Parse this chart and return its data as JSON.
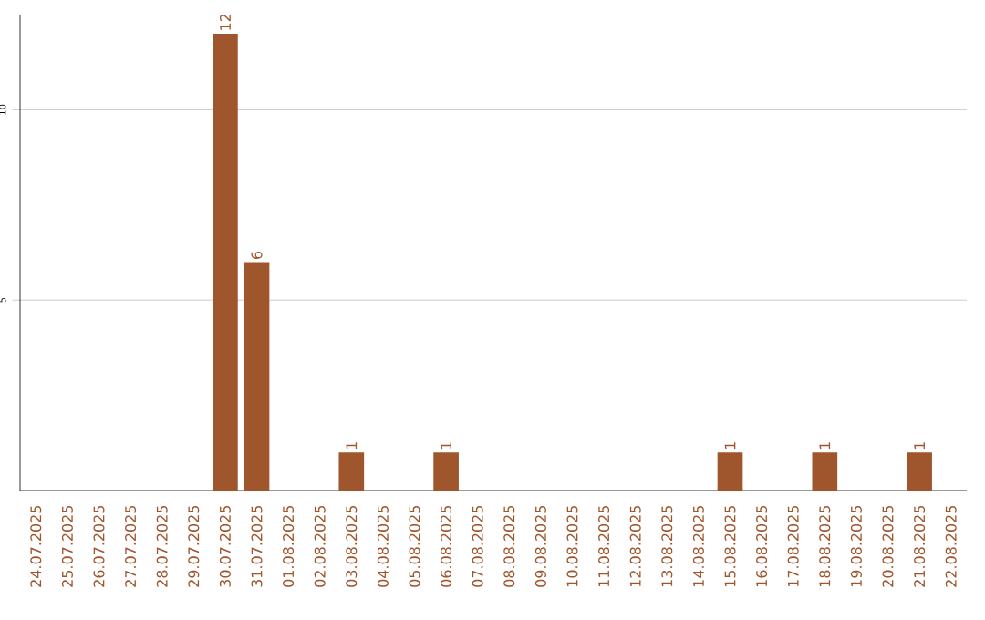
{
  "chart_data": {
    "type": "bar",
    "categories": [
      "24.07.2025",
      "25.07.2025",
      "26.07.2025",
      "27.07.2025",
      "28.07.2025",
      "29.07.2025",
      "30.07.2025",
      "31.07.2025",
      "01.08.2025",
      "02.08.2025",
      "03.08.2025",
      "04.08.2025",
      "05.08.2025",
      "06.08.2025",
      "07.08.2025",
      "08.08.2025",
      "09.08.2025",
      "10.08.2025",
      "11.08.2025",
      "12.08.2025",
      "13.08.2025",
      "14.08.2025",
      "15.08.2025",
      "16.08.2025",
      "17.08.2025",
      "18.08.2025",
      "19.08.2025",
      "20.08.2025",
      "21.08.2025",
      "22.08.2025"
    ],
    "values": [
      0,
      0,
      0,
      0,
      0,
      0,
      12,
      6,
      0,
      0,
      1,
      0,
      0,
      1,
      0,
      0,
      0,
      0,
      0,
      0,
      0,
      0,
      1,
      0,
      0,
      1,
      0,
      0,
      1,
      0
    ],
    "value_labels": [
      null,
      null,
      null,
      null,
      null,
      null,
      "12",
      "6",
      null,
      null,
      "1",
      null,
      null,
      "1",
      null,
      null,
      null,
      null,
      null,
      null,
      null,
      null,
      "1",
      null,
      null,
      "1",
      null,
      null,
      "1",
      null
    ],
    "color": "#a0562c",
    "ylim": [
      0,
      12.5
    ],
    "yticks": [
      5,
      10
    ],
    "grid": "y"
  }
}
